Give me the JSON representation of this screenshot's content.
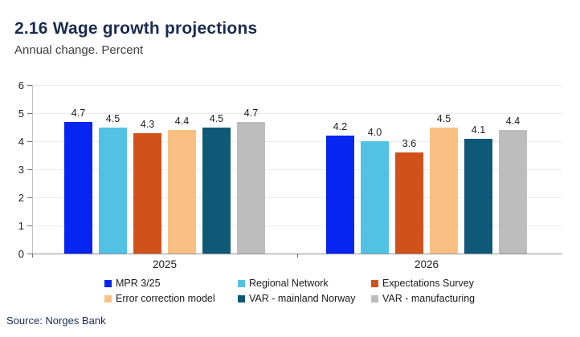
{
  "header": {
    "title": "2.16 Wage growth projections",
    "subtitle": "Annual change. Percent"
  },
  "source": "Source: Norges Bank",
  "chart_data": {
    "type": "bar",
    "categories": [
      "2025",
      "2026"
    ],
    "series": [
      {
        "name": "MPR 3/25",
        "color": "#0625f0",
        "values": [
          4.7,
          4.2
        ]
      },
      {
        "name": "Regional Network",
        "color": "#52c2e4",
        "values": [
          4.5,
          4.0
        ]
      },
      {
        "name": "Expectations Survey",
        "color": "#d0521a",
        "values": [
          4.3,
          3.6
        ]
      },
      {
        "name": "Error correction model",
        "color": "#fac083",
        "values": [
          4.4,
          4.5
        ]
      },
      {
        "name": "VAR - mainland Norway",
        "color": "#0f5878",
        "values": [
          4.5,
          4.1
        ]
      },
      {
        "name": "VAR - manufacturing",
        "color": "#bdbdbd",
        "values": [
          4.7,
          4.4
        ]
      }
    ],
    "ylim": [
      0,
      6
    ],
    "yticks": [
      0,
      1,
      2,
      3,
      4,
      5,
      6
    ],
    "grid": true,
    "value_labels": true,
    "value_label_decimals": 1,
    "legend_position": "bottom"
  }
}
